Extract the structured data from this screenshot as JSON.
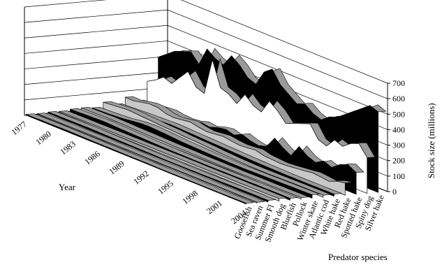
{
  "chart_data": {
    "type": "area",
    "subtype": "3d-ribbon",
    "title": "",
    "xlabel": "Year",
    "ylabel": "Predator species",
    "zlabel": "Stock size (millions)",
    "zlim": [
      0,
      700
    ],
    "z_ticks": [
      "0",
      "100",
      "200",
      "300",
      "400",
      "500",
      "600",
      "700"
    ],
    "year_ticks": [
      "1977",
      "1980",
      "1983",
      "1986",
      "1989",
      "1992",
      "1995",
      "1998",
      "2001",
      "2004"
    ],
    "years": [
      1977,
      1978,
      1979,
      1980,
      1981,
      1982,
      1983,
      1984,
      1985,
      1986,
      1987,
      1988,
      1989,
      1990,
      1991,
      1992,
      1993,
      1994,
      1995,
      1996,
      1997,
      1998,
      1999,
      2000,
      2001,
      2002,
      2003,
      2004
    ],
    "grid": true,
    "series": [
      {
        "name": "Goosefish",
        "fill": "#000000",
        "values": [
          6,
          6,
          7,
          7,
          8,
          8,
          8,
          7,
          7,
          6,
          6,
          6,
          5,
          5,
          5,
          5,
          4,
          4,
          4,
          4,
          4,
          4,
          4,
          4,
          4,
          5,
          5,
          5
        ]
      },
      {
        "name": "Sea raven",
        "fill": "#c8c8c8",
        "values": [
          4,
          4,
          5,
          5,
          5,
          5,
          6,
          6,
          5,
          5,
          5,
          5,
          5,
          5,
          4,
          4,
          4,
          4,
          4,
          4,
          4,
          4,
          5,
          5,
          5,
          5,
          5,
          5
        ]
      },
      {
        "name": "Summer Fl",
        "fill": "#000000",
        "values": [
          8,
          9,
          9,
          10,
          10,
          11,
          10,
          9,
          9,
          8,
          7,
          7,
          6,
          6,
          5,
          5,
          5,
          5,
          6,
          6,
          7,
          8,
          9,
          10,
          10,
          11,
          11,
          11
        ]
      },
      {
        "name": "Smooth dog",
        "fill": "#c8c8c8",
        "values": [
          6,
          7,
          7,
          8,
          8,
          9,
          9,
          10,
          10,
          11,
          11,
          12,
          12,
          12,
          13,
          13,
          13,
          13,
          13,
          13,
          14,
          14,
          14,
          14,
          15,
          15,
          15,
          16
        ]
      },
      {
        "name": "Bluefish",
        "fill": "#000000",
        "values": [
          14,
          16,
          18,
          20,
          22,
          20,
          18,
          16,
          15,
          14,
          12,
          11,
          10,
          9,
          9,
          8,
          8,
          8,
          8,
          9,
          9,
          10,
          10,
          11,
          11,
          12,
          12,
          12
        ]
      },
      {
        "name": "Pollock",
        "fill": "#c8c8c8",
        "values": [
          16,
          17,
          18,
          20,
          19,
          18,
          16,
          15,
          14,
          13,
          12,
          11,
          10,
          10,
          9,
          8,
          8,
          7,
          7,
          7,
          7,
          8,
          8,
          8,
          9,
          9,
          10,
          10
        ]
      },
      {
        "name": "Winter skate",
        "fill": "#000000",
        "values": [
          10,
          12,
          14,
          18,
          22,
          30,
          36,
          38,
          35,
          32,
          28,
          24,
          22,
          20,
          18,
          16,
          15,
          14,
          14,
          14,
          15,
          16,
          17,
          18,
          19,
          20,
          21,
          22
        ]
      },
      {
        "name": "Atlantic cod",
        "fill": "#c8c8c8",
        "values": [
          40,
          45,
          50,
          55,
          52,
          48,
          45,
          40,
          38,
          35,
          30,
          28,
          25,
          22,
          18,
          15,
          12,
          10,
          9,
          8,
          8,
          9,
          10,
          11,
          12,
          12,
          13,
          13
        ]
      },
      {
        "name": "White hake",
        "fill": "#000000",
        "values": [
          20,
          22,
          25,
          28,
          30,
          32,
          34,
          36,
          34,
          32,
          30,
          28,
          26,
          24,
          22,
          20,
          18,
          16,
          15,
          14,
          13,
          12,
          12,
          12,
          12,
          13,
          13,
          14
        ]
      },
      {
        "name": "Red hake",
        "fill": "#c8c8c8",
        "values": [
          60,
          58,
          70,
          80,
          78,
          60,
          55,
          62,
          70,
          58,
          50,
          56,
          62,
          54,
          48,
          52,
          58,
          44,
          40,
          36,
          40,
          46,
          52,
          60,
          55,
          48,
          70,
          80
        ]
      },
      {
        "name": "Spotted hake",
        "fill": "#000000",
        "values": [
          30,
          34,
          40,
          46,
          50,
          42,
          38,
          44,
          60,
          52,
          70,
          80,
          64,
          90,
          70,
          60,
          76,
          150,
          110,
          80,
          160,
          120,
          100,
          130,
          110,
          150,
          170,
          140
        ]
      },
      {
        "name": "Spiny dog",
        "fill": "#ffffff",
        "values": [
          150,
          180,
          220,
          200,
          260,
          320,
          240,
          220,
          460,
          300,
          280,
          240,
          320,
          270,
          250,
          340,
          300,
          240,
          260,
          280,
          300,
          220,
          200,
          260,
          240,
          280,
          300,
          230
        ]
      },
      {
        "name": "Silver hake",
        "fill": "#000000",
        "values": [
          300,
          340,
          380,
          400,
          420,
          360,
          480,
          440,
          420,
          500,
          460,
          400,
          380,
          480,
          520,
          440,
          400,
          360,
          380,
          340,
          320,
          360,
          380,
          420,
          460,
          500,
          540,
          520
        ]
      }
    ]
  }
}
